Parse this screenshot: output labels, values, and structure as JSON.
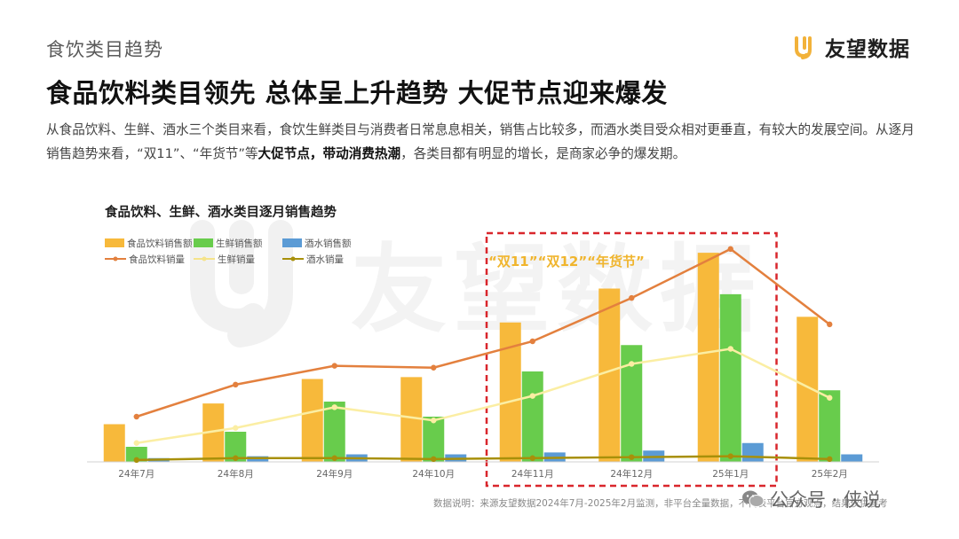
{
  "section_label": "食饮类目趋势",
  "brand": {
    "name": "友望数据",
    "logo_letter": "Uy",
    "accent": "#f2b23a"
  },
  "headline": "食品饮料类目领先 总体呈上升趋势 大促节点迎来爆发",
  "description": {
    "part1": "从食品饮料、生鲜、酒水三个类目来看，食饮生鲜类目与消费者日常息息相关，销售占比较多，而酒水类目受众相对更垂直，有较大的发展空间。从逐月销售趋势来看，“双11”、“年货节”等",
    "bold": "大促节点，带动消费热潮",
    "part2": "，各类目都有明显的增长，是商家必争的爆发期。"
  },
  "watermark": "友望数据",
  "highlight_label": "“双11”“双12”“年货节”",
  "source_note": "数据说明：来源友望数据2024年7月-2025年2月监测，非平台全量数据，不代表平台官方观点，结果仅供参考",
  "wechat": {
    "icon": "wechat-icon",
    "text": "公众号 · 侠说"
  },
  "colors": {
    "food_bar": "#f7b93b",
    "fresh_bar": "#68cc4c",
    "wine_bar": "#5b9bd5",
    "food_line": "#e3803e",
    "fresh_line": "#fbeea3",
    "wine_line": "#a8900a",
    "highlight_box": "#d9262c"
  },
  "chart_data": {
    "type": "bar",
    "title": "食品饮料、生鲜、酒水类目逐月销售趋势",
    "categories": [
      "24年7月",
      "24年8月",
      "24年9月",
      "24年10月",
      "24年11月",
      "24年12月",
      "25年1月",
      "25年2月"
    ],
    "series": [
      {
        "name": "食品饮料销售额",
        "kind": "bar",
        "values": [
          20,
          31,
          44,
          45,
          74,
          92,
          111,
          77
        ]
      },
      {
        "name": "生鲜销售额",
        "kind": "bar",
        "values": [
          8,
          16,
          32,
          24,
          48,
          62,
          89,
          38
        ]
      },
      {
        "name": "酒水销售额",
        "kind": "bar",
        "values": [
          2,
          3,
          4,
          4,
          5,
          6,
          10,
          4
        ]
      },
      {
        "name": "食品饮料销量",
        "kind": "line",
        "values": [
          24,
          41,
          51,
          50,
          64,
          87,
          113,
          73
        ]
      },
      {
        "name": "生鲜销量",
        "kind": "line",
        "values": [
          10,
          18,
          29,
          22,
          35,
          52,
          60,
          34
        ]
      },
      {
        "name": "酒水销量",
        "kind": "line",
        "values": [
          1,
          2,
          2,
          1.5,
          2,
          2.5,
          3,
          1.5
        ]
      }
    ],
    "highlight_range": [
      "24年11月",
      "25年1月"
    ],
    "ylim": [
      0,
      120
    ],
    "grid": false,
    "legend_position": "top-left"
  }
}
